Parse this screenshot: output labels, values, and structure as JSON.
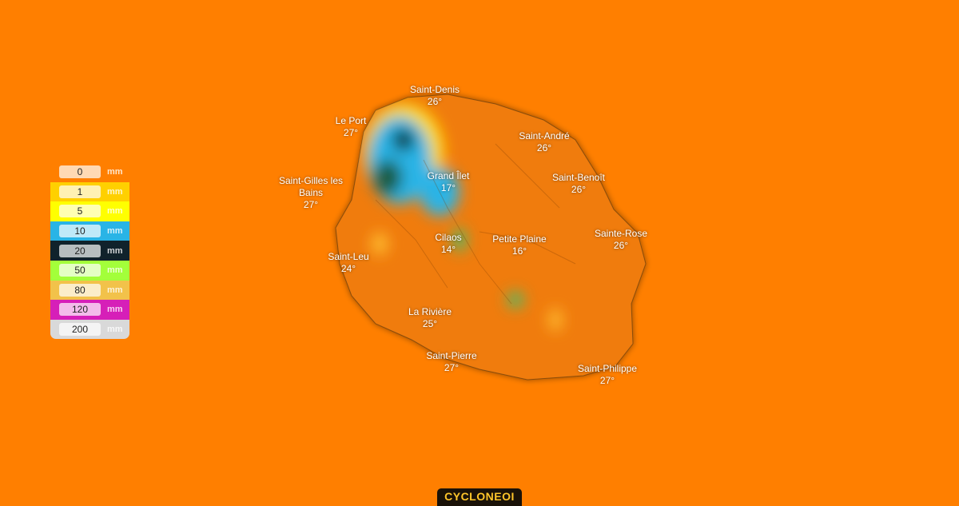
{
  "map": {
    "background_color": "#ff7f00",
    "cities": [
      {
        "name": "Saint-Denis",
        "temp": "26°"
      },
      {
        "name": "Le Port",
        "temp": "27°"
      },
      {
        "name": "Saint-André",
        "temp": "26°"
      },
      {
        "name": "Grand Îlet",
        "temp": "17°"
      },
      {
        "name": "Saint-Benoît",
        "temp": "26°"
      },
      {
        "name": "Saint-Gilles les Bains",
        "temp": "27°"
      },
      {
        "name": "Cilaos",
        "temp": "14°"
      },
      {
        "name": "Petite Plaine",
        "temp": "16°"
      },
      {
        "name": "Sainte-Rose",
        "temp": "26°"
      },
      {
        "name": "Saint-Leu",
        "temp": "24°"
      },
      {
        "name": "La Rivière",
        "temp": "25°"
      },
      {
        "name": "Saint-Pierre",
        "temp": "27°"
      },
      {
        "name": "Saint-Philippe",
        "temp": "27°"
      }
    ]
  },
  "legend": {
    "unit": "mm",
    "items": [
      {
        "value": "0",
        "color": "#ff7f00"
      },
      {
        "value": "1",
        "color": "#ffd000"
      },
      {
        "value": "5",
        "color": "#ffff00"
      },
      {
        "value": "10",
        "color": "#29b4e6"
      },
      {
        "value": "20",
        "color": "#10222b"
      },
      {
        "value": "50",
        "color": "#a3ff3a"
      },
      {
        "value": "80",
        "color": "#f2c24a"
      },
      {
        "value": "120",
        "color": "#d61fb8"
      },
      {
        "value": "200",
        "color": "#d9d9d9"
      }
    ]
  },
  "brand": "CYCLONEOI"
}
